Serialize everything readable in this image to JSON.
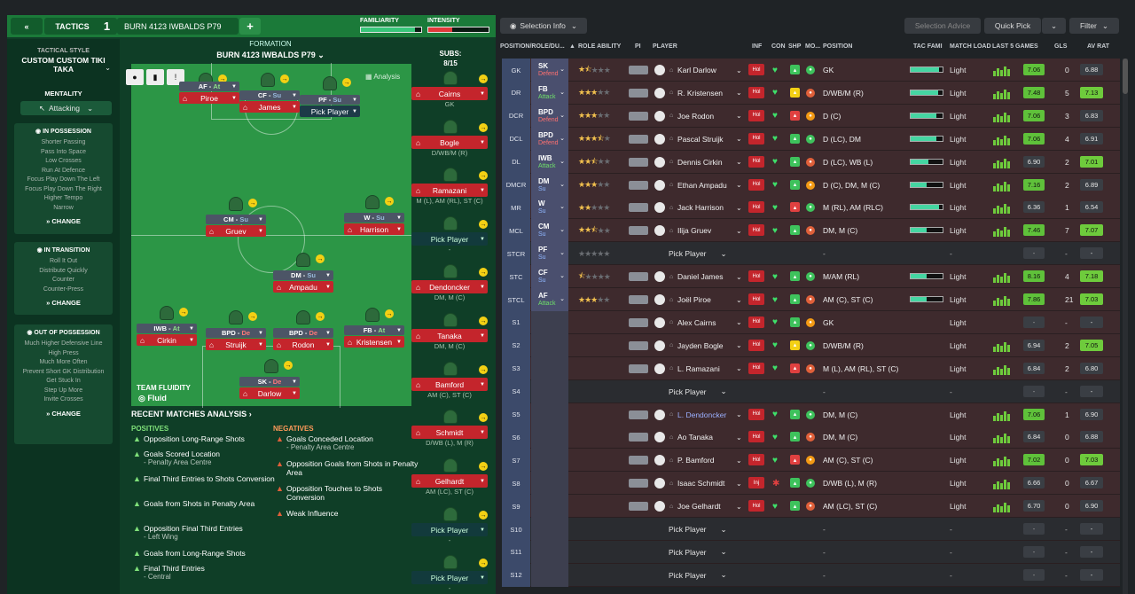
{
  "header": {
    "tab": "TACTICS",
    "slot": "1",
    "tactic_name": "BURN 4123 IWBALDS P79",
    "familiarity_label": "FAMILIARITY",
    "intensity_label": "INTENSITY",
    "familiarity": 0.9,
    "intensity": 0.4
  },
  "sidebar": {
    "style_label": "TACTICAL STYLE",
    "style_value": "CUSTOM CUSTOM TIKI TAKA",
    "mentality_label": "MENTALITY",
    "mentality_value": "Attacking",
    "in_possession": {
      "title": "IN POSSESSION",
      "items": [
        "Shorter Passing",
        "Pass Into Space",
        "Low Crosses",
        "Run At Defence",
        "Focus Play Down The Left",
        "Focus Play Down The Right",
        "Higher Tempo",
        "Narrow"
      ]
    },
    "in_transition": {
      "title": "IN TRANSITION",
      "items": [
        "Roll It Out",
        "Distribute Quickly",
        "Counter",
        "Counter-Press"
      ]
    },
    "out_possession": {
      "title": "OUT OF POSSESSION",
      "items": [
        "Much Higher Defensive Line",
        "High Press",
        "Much More Often",
        "Prevent Short GK Distribution",
        "Get Stuck In",
        "Step Up More",
        "Invite Crosses"
      ]
    },
    "change_label": "CHANGE"
  },
  "formation": {
    "label": "FORMATION",
    "name": "BURN 4123 IWBALDS P79",
    "analysis": "Analysis",
    "fluidity_label": "TEAM FLUIDITY",
    "fluidity_value": "Fluid",
    "players": [
      {
        "role": "AF",
        "duty": "At",
        "name": "Piroe"
      },
      {
        "role": "CF",
        "duty": "Su",
        "name": "James"
      },
      {
        "role": "PF",
        "duty": "Su",
        "name": "Pick Player"
      },
      {
        "role": "CM",
        "duty": "Su",
        "name": "Gruev"
      },
      {
        "role": "W",
        "duty": "Su",
        "name": "Harrison"
      },
      {
        "role": "DM",
        "duty": "Su",
        "name": "Ampadu"
      },
      {
        "role": "IWB",
        "duty": "At",
        "name": "Cirkin"
      },
      {
        "role": "BPD",
        "duty": "De",
        "name": "Struijk"
      },
      {
        "role": "BPD",
        "duty": "De",
        "name": "Rodon"
      },
      {
        "role": "FB",
        "duty": "At",
        "name": "Kristensen"
      },
      {
        "role": "SK",
        "duty": "De",
        "name": "Darlow"
      }
    ]
  },
  "subs": {
    "label": "SUBS:",
    "count": "8/15",
    "items": [
      {
        "name": "Cairns",
        "pos": "GK"
      },
      {
        "name": "Bogle",
        "pos": "D/WB/M (R)"
      },
      {
        "name": "Ramazani",
        "pos": "M (L), AM (RL), ST (C)"
      },
      {
        "name": "Pick Player",
        "pos": "-"
      },
      {
        "name": "Dendoncker",
        "pos": "DM, M (C)"
      },
      {
        "name": "Tanaka",
        "pos": "DM, M (C)"
      },
      {
        "name": "Bamford",
        "pos": "AM (C), ST (C)"
      },
      {
        "name": "Schmidt",
        "pos": "D/WB (L), M (R)"
      },
      {
        "name": "Gelhardt",
        "pos": "AM (LC), ST (C)"
      },
      {
        "name": "Pick Player",
        "pos": "-"
      },
      {
        "name": "Pick Player",
        "pos": "-"
      }
    ]
  },
  "analysis": {
    "title": "RECENT MATCHES ANALYSIS",
    "positives_label": "POSITIVES",
    "negatives_label": "NEGATIVES",
    "positives": [
      [
        "Opposition Long-Range Shots",
        ""
      ],
      [
        "Goals Scored Location",
        "- Penalty Area Centre"
      ],
      [
        "Final Third Entries to Shots Conversion",
        ""
      ],
      [
        "Goals from Shots in Penalty Area",
        ""
      ],
      [
        "Opposition Final Third Entries",
        "- Left Wing"
      ],
      [
        "Goals from Long-Range Shots",
        ""
      ],
      [
        "Final Third Entries",
        "- Central"
      ]
    ],
    "negatives": [
      [
        "Goals Conceded Location",
        "- Penalty Area Centre"
      ],
      [
        "Opposition Goals from Shots in Penalty Area",
        ""
      ],
      [
        "Opposition Touches to Shots Conversion",
        ""
      ],
      [
        "Weak Influence",
        ""
      ]
    ]
  },
  "right": {
    "selection_info": "Selection Info",
    "selection_advice": "Selection Advice",
    "quick_pick": "Quick Pick",
    "filter": "Filter",
    "columns": [
      "POSITION/ROLE/DU...",
      "ROLE ABILITY",
      "PI",
      "PLAYER",
      "INF",
      "CON",
      "SHP",
      "MO...",
      "POSITION",
      "TAC FAMI",
      "MATCH LOAD",
      "LAST 5 GAMES",
      "GLS",
      "AV RAT"
    ],
    "rows": [
      {
        "pos": "GK",
        "role": "SK",
        "duty": "Defend",
        "stars": 1.5,
        "player": "Karl Darlow",
        "inf": "Hol",
        "position": "GK",
        "tf": 0.9,
        "load": "Light",
        "rating": "7.06",
        "gls": "0",
        "av": "6.88",
        "avg": false
      },
      {
        "pos": "DR",
        "role": "FB",
        "duty": "Attack",
        "stars": 3,
        "player": "R. Kristensen",
        "inf": "Hol",
        "position": "D/WB/M (R)",
        "tf": 0.85,
        "load": "Light",
        "rating": "7.48",
        "gls": "5",
        "av": "7.13",
        "avg": true
      },
      {
        "pos": "DCR",
        "role": "BPD",
        "duty": "Defend",
        "stars": 3,
        "player": "Joe Rodon",
        "inf": "Hol",
        "position": "D (C)",
        "tf": 0.8,
        "load": "Light",
        "rating": "7.06",
        "gls": "3",
        "av": "6.83",
        "avg": false
      },
      {
        "pos": "DCL",
        "role": "BPD",
        "duty": "Defend",
        "stars": 3.5,
        "player": "Pascal Struijk",
        "inf": "Hol",
        "position": "D (LC), DM",
        "tf": 0.8,
        "load": "Light",
        "rating": "7.06",
        "gls": "4",
        "av": "6.91",
        "avg": false
      },
      {
        "pos": "DL",
        "role": "IWB",
        "duty": "Attack",
        "stars": 2.5,
        "player": "Dennis Cirkin",
        "inf": "Hol",
        "position": "D (LC), WB (L)",
        "tf": 0.55,
        "load": "Light",
        "rating": "6.90",
        "gls": "2",
        "av": "7.01",
        "avg": true
      },
      {
        "pos": "DMCR",
        "role": "DM",
        "duty": "Su",
        "stars": 3,
        "player": "Ethan Ampadu",
        "inf": "Hol",
        "position": "D (C), DM, M (C)",
        "tf": 0.5,
        "load": "Light",
        "rating": "7.16",
        "gls": "2",
        "av": "6.89",
        "avg": false
      },
      {
        "pos": "MR",
        "role": "W",
        "duty": "Su",
        "stars": 2,
        "player": "Jack Harrison",
        "inf": "Hol",
        "position": "M (RL), AM (RLC)",
        "tf": 0.9,
        "load": "Light",
        "rating": "6.36",
        "gls": "1",
        "av": "6.54",
        "avg": false
      },
      {
        "pos": "MCL",
        "role": "CM",
        "duty": "Su",
        "stars": 2.5,
        "player": "Ilija Gruev",
        "inf": "Hol",
        "position": "DM, M (C)",
        "tf": 0.5,
        "load": "Light",
        "rating": "7.46",
        "gls": "7",
        "av": "7.07",
        "avg": true
      },
      {
        "pos": "STCR",
        "role": "PF",
        "duty": "Su",
        "stars": 0,
        "player": "Pick Player",
        "inf": "",
        "position": "-",
        "tf": 0,
        "load": "-",
        "rating": "-",
        "gls": "-",
        "av": "-",
        "avg": false,
        "empty": true
      },
      {
        "pos": "STC",
        "role": "CF",
        "duty": "Su",
        "stars": 0.5,
        "player": "Daniel James",
        "inf": "Hol",
        "position": "M/AM (RL)",
        "tf": 0.5,
        "load": "Light",
        "rating": "8.16",
        "gls": "4",
        "av": "7.18",
        "avg": true
      },
      {
        "pos": "STCL",
        "role": "AF",
        "duty": "Attack",
        "stars": 3,
        "player": "Joël Piroe",
        "inf": "Hol",
        "position": "AM (C), ST (C)",
        "tf": 0.5,
        "load": "Light",
        "rating": "7.86",
        "gls": "21",
        "av": "7.03",
        "avg": true
      },
      {
        "pos": "S1",
        "player": "Alex Cairns",
        "inf": "Hol",
        "position": "GK",
        "load": "Light",
        "rating": "-",
        "gls": "-",
        "av": "-",
        "avg": false
      },
      {
        "pos": "S2",
        "player": "Jayden Bogle",
        "inf": "Hol",
        "position": "D/WB/M (R)",
        "load": "Light",
        "rating": "6.94",
        "gls": "2",
        "av": "7.05",
        "avg": true
      },
      {
        "pos": "S3",
        "player": "L. Ramazani",
        "inf": "Hol",
        "position": "M (L), AM (RL), ST (C)",
        "load": "Light",
        "rating": "6.84",
        "gls": "2",
        "av": "6.80",
        "avg": false
      },
      {
        "pos": "S4",
        "player": "Pick Player",
        "inf": "",
        "position": "-",
        "load": "-",
        "rating": "-",
        "gls": "-",
        "av": "-",
        "avg": false,
        "empty": true
      },
      {
        "pos": "S5",
        "player": "L. Dendoncker",
        "inf": "Hol",
        "position": "DM, M (C)",
        "load": "Light",
        "rating": "7.06",
        "gls": "1",
        "av": "6.90",
        "avg": false
      },
      {
        "pos": "S6",
        "player": "Ao Tanaka",
        "inf": "Hol",
        "position": "DM, M (C)",
        "load": "Light",
        "rating": "6.84",
        "gls": "0",
        "av": "6.88",
        "avg": false
      },
      {
        "pos": "S7",
        "player": "P. Bamford",
        "inf": "Hol",
        "position": "AM (C), ST (C)",
        "load": "Light",
        "rating": "7.02",
        "gls": "0",
        "av": "7.03",
        "avg": true
      },
      {
        "pos": "S8",
        "player": "Isaac Schmidt",
        "inf": "Inj",
        "position": "D/WB (L), M (R)",
        "load": "Light",
        "rating": "6.66",
        "gls": "0",
        "av": "6.67",
        "avg": false
      },
      {
        "pos": "S9",
        "player": "Joe Gelhardt",
        "inf": "Hol",
        "position": "AM (LC), ST (C)",
        "load": "Light",
        "rating": "6.70",
        "gls": "0",
        "av": "6.90",
        "avg": false
      },
      {
        "pos": "S10",
        "player": "Pick Player",
        "inf": "",
        "position": "-",
        "load": "-",
        "rating": "-",
        "gls": "-",
        "av": "-",
        "avg": false,
        "empty": true
      },
      {
        "pos": "S11",
        "player": "Pick Player",
        "inf": "",
        "position": "-",
        "load": "-",
        "rating": "-",
        "gls": "-",
        "av": "-",
        "avg": false,
        "empty": true
      },
      {
        "pos": "S12",
        "player": "Pick Player",
        "inf": "",
        "position": "-",
        "load": "-",
        "rating": "-",
        "gls": "-",
        "av": "-",
        "avg": false,
        "empty": true
      }
    ]
  }
}
